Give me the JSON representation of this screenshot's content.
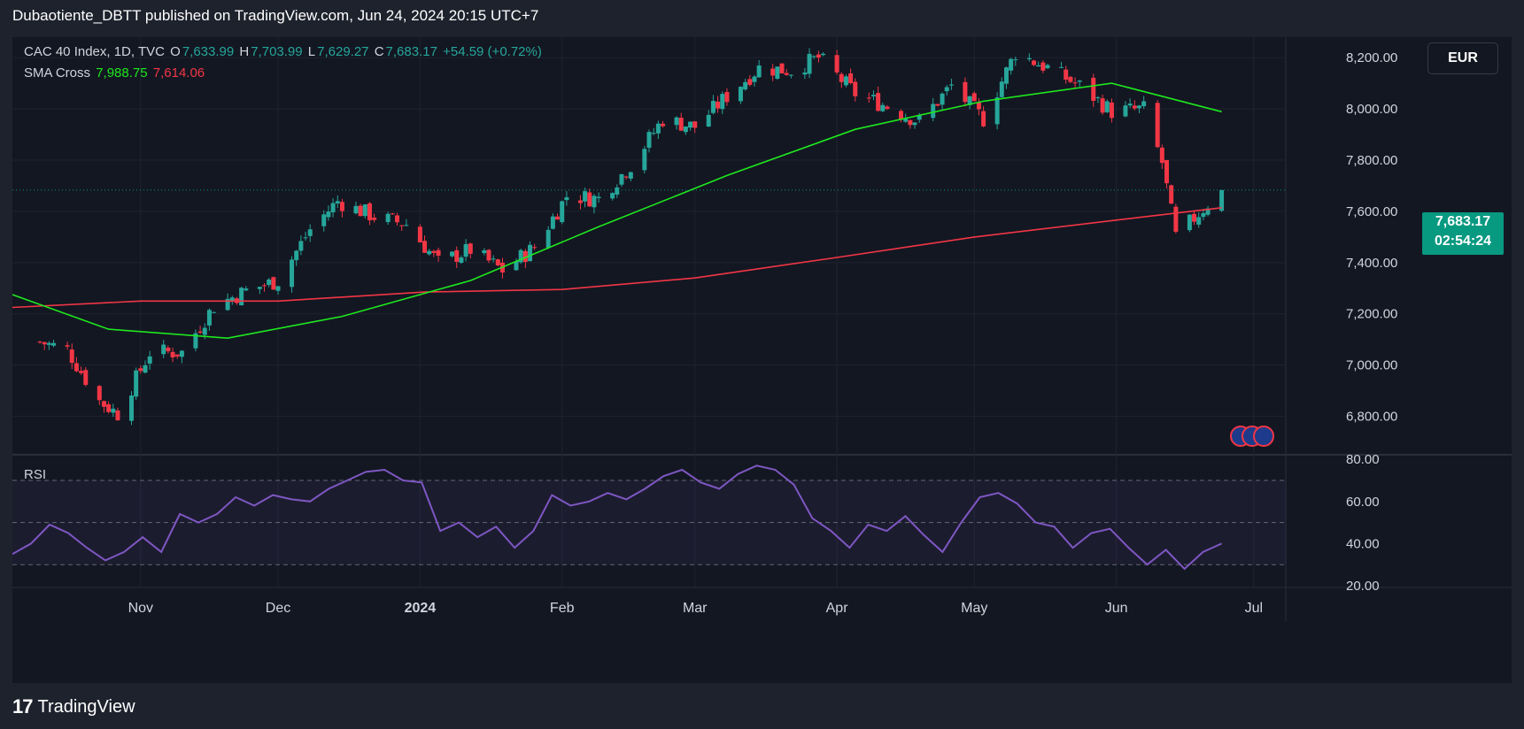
{
  "header": {
    "publish_line": "Dubaotiente_DBTT published on TradingView.com, Jun 24, 2024 20:15 UTC+7"
  },
  "legend": {
    "symbol": "CAC 40 Index, 1D, TVC",
    "o_label": "O",
    "o_value": "7,633.99",
    "h_label": "H",
    "h_value": "7,703.99",
    "l_label": "L",
    "l_value": "7,629.27",
    "c_label": "C",
    "c_value": "7,683.17",
    "change": "+54.59 (+0.72%)",
    "sma_label": "SMA Cross",
    "sma_fast": "7,988.75",
    "sma_slow": "7,614.06"
  },
  "rsi_label": "RSI",
  "currency_button": "EUR",
  "price_tag": {
    "price": "7,683.17",
    "countdown": "02:54:24"
  },
  "footer": {
    "brand": "TradingView",
    "logo_icon": "17"
  },
  "colors": {
    "up": "#26a69a",
    "down": "#f23645",
    "sma_fast": "#1ee81e",
    "sma_slow": "#f23645",
    "rsi": "#7e57c2",
    "tag": "#089981"
  },
  "chart_data": [
    {
      "type": "candlestick",
      "name": "CAC 40 Index, 1D, TVC",
      "y_ticks": [
        "6,800.00",
        "7,000.00",
        "7,200.00",
        "7,400.00",
        "7,600.00",
        "7,800.00",
        "8,000.00",
        "8,200.00"
      ],
      "x_ticks": [
        "Nov",
        "Dec",
        "2024",
        "Feb",
        "Mar",
        "Apr",
        "May",
        "Jun",
        "Jul"
      ],
      "ylim": [
        6650,
        8280
      ],
      "current_price": 7683.17,
      "close_series": [
        {
          "date": "2023-10-10",
          "close": 7090
        },
        {
          "date": "2023-10-16",
          "close": 7060
        },
        {
          "date": "2023-10-23",
          "close": 6860
        },
        {
          "date": "2023-10-27",
          "close": 6810
        },
        {
          "date": "2023-11-03",
          "close": 7050
        },
        {
          "date": "2023-11-10",
          "close": 7050
        },
        {
          "date": "2023-11-17",
          "close": 7230
        },
        {
          "date": "2023-11-24",
          "close": 7290
        },
        {
          "date": "2023-12-01",
          "close": 7330
        },
        {
          "date": "2023-12-08",
          "close": 7530
        },
        {
          "date": "2023-12-14",
          "close": 7640
        },
        {
          "date": "2023-12-22",
          "close": 7580
        },
        {
          "date": "2023-12-29",
          "close": 7550
        },
        {
          "date": "2024-01-05",
          "close": 7400
        },
        {
          "date": "2024-01-12",
          "close": 7450
        },
        {
          "date": "2024-01-19",
          "close": 7370
        },
        {
          "date": "2024-01-26",
          "close": 7460
        },
        {
          "date": "2024-02-02",
          "close": 7660
        },
        {
          "date": "2024-02-09",
          "close": 7650
        },
        {
          "date": "2024-02-16",
          "close": 7780
        },
        {
          "date": "2024-02-23",
          "close": 7960
        },
        {
          "date": "2024-03-01",
          "close": 7930
        },
        {
          "date": "2024-03-08",
          "close": 8050
        },
        {
          "date": "2024-03-15",
          "close": 8160
        },
        {
          "date": "2024-03-22",
          "close": 8150
        },
        {
          "date": "2024-03-28",
          "close": 8200
        },
        {
          "date": "2024-04-05",
          "close": 8060
        },
        {
          "date": "2024-04-12",
          "close": 8010
        },
        {
          "date": "2024-04-19",
          "close": 7950
        },
        {
          "date": "2024-04-26",
          "close": 8090
        },
        {
          "date": "2024-05-03",
          "close": 7960
        },
        {
          "date": "2024-05-10",
          "close": 8220
        },
        {
          "date": "2024-05-17",
          "close": 8160
        },
        {
          "date": "2024-05-24",
          "close": 8090
        },
        {
          "date": "2024-05-31",
          "close": 7990
        },
        {
          "date": "2024-06-07",
          "close": 8000
        },
        {
          "date": "2024-06-11",
          "close": 7790
        },
        {
          "date": "2024-06-14",
          "close": 7500
        },
        {
          "date": "2024-06-21",
          "close": 7630
        },
        {
          "date": "2024-06-24",
          "close": 7683.17
        }
      ],
      "sma_fast_series": [
        {
          "date": "2023-10-04",
          "value": 7275
        },
        {
          "date": "2023-10-25",
          "value": 7140
        },
        {
          "date": "2023-11-20",
          "value": 7105
        },
        {
          "date": "2023-12-15",
          "value": 7190
        },
        {
          "date": "2024-01-12",
          "value": 7330
        },
        {
          "date": "2024-02-09",
          "value": 7540
        },
        {
          "date": "2024-03-08",
          "value": 7740
        },
        {
          "date": "2024-04-05",
          "value": 7920
        },
        {
          "date": "2024-05-03",
          "value": 8030
        },
        {
          "date": "2024-05-31",
          "value": 8100
        },
        {
          "date": "2024-06-24",
          "value": 7988.75
        }
      ],
      "sma_slow_series": [
        {
          "date": "2023-10-04",
          "value": 7225
        },
        {
          "date": "2023-11-01",
          "value": 7250
        },
        {
          "date": "2023-12-01",
          "value": 7250
        },
        {
          "date": "2024-01-02",
          "value": 7285
        },
        {
          "date": "2024-02-01",
          "value": 7295
        },
        {
          "date": "2024-03-01",
          "value": 7340
        },
        {
          "date": "2024-04-01",
          "value": 7420
        },
        {
          "date": "2024-05-01",
          "value": 7500
        },
        {
          "date": "2024-06-03",
          "value": 7570
        },
        {
          "date": "2024-06-24",
          "value": 7614.06
        }
      ]
    },
    {
      "type": "line",
      "name": "RSI",
      "y_ticks": [
        "20.00",
        "40.00",
        "60.00",
        "80.00"
      ],
      "ylim": [
        20,
        83
      ],
      "bands": [
        30,
        50,
        70
      ],
      "values": [
        35,
        40,
        49,
        45,
        38,
        32,
        36,
        43,
        36,
        54,
        50,
        54,
        62,
        58,
        63,
        61,
        60,
        66,
        70,
        74,
        75,
        70,
        69,
        46,
        50,
        43,
        48,
        38,
        46,
        63,
        58,
        60,
        64,
        61,
        66,
        72,
        75,
        69,
        66,
        73,
        77,
        75,
        68,
        52,
        46,
        38,
        49,
        46,
        53,
        44,
        36,
        50,
        62,
        64,
        59,
        50,
        48,
        38,
        45,
        47,
        38,
        30,
        37,
        28,
        36,
        40
      ]
    }
  ]
}
